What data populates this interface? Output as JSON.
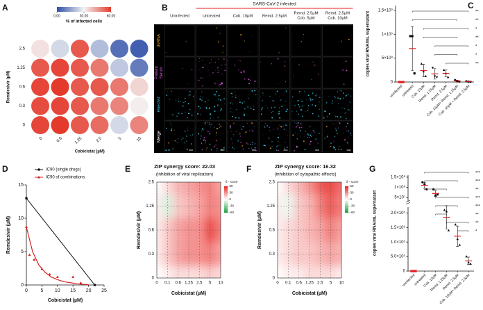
{
  "chart_data": [
    {
      "panel": "A",
      "type": "heatmap",
      "colorbar_label": "% of infected cells",
      "colorbar_ticks": [
        {
          "value": 0,
          "label": "0.00"
        },
        {
          "value": 30,
          "label": "30.00"
        },
        {
          "value": 60,
          "label": "60.00"
        }
      ],
      "colors": [
        "#2f4fa8",
        "#f4f4f4",
        "#e43a2c"
      ],
      "x_label": "Cobicistat (µM)",
      "y_label": "Remdesivir (µM)",
      "x": [
        "0",
        "0.6",
        "1.25",
        "2.5",
        "5",
        "10"
      ],
      "y": [
        "2.5",
        "1.25",
        "0.6",
        "0.3",
        "0"
      ],
      "values": [
        [
          33,
          25,
          55,
          20,
          6,
          3
        ],
        [
          55,
          58,
          55,
          50,
          22,
          8
        ],
        [
          58,
          60,
          55,
          55,
          50,
          35
        ],
        [
          57,
          58,
          55,
          50,
          48,
          31
        ],
        [
          58,
          60,
          55,
          52,
          25,
          48
        ]
      ]
    },
    {
      "panel": "C",
      "type": "dot",
      "y_label": "copies viral RNA/mL supernatant",
      "categories": [
        "uninfected",
        "untreated",
        "Cob. 10µM",
        "Remd. 1.25µM",
        "Remd. 2.5µM",
        "Cob. 10µM+ Remd. 1.25µM",
        "Cob. 10µM + Remd. 2.5µM"
      ],
      "points": [
        [
          0,
          0,
          0
        ],
        [
          960000000.0,
          960000000.0,
          180000000.0
        ],
        [
          380000000.0,
          220000000.0,
          120000000.0
        ],
        [
          300000000.0,
          120000000.0,
          100000000.0
        ],
        [
          250000000.0,
          180000000.0,
          100000000.0
        ],
        [
          40000000.0,
          20000000.0,
          10000000.0
        ],
        [
          15000000.0,
          10000000.0,
          5000000.0
        ]
      ],
      "values": [
        0,
        700000000.0,
        240000000.0,
        170000000.0,
        180000000.0,
        23000000.0,
        10000000.0
      ],
      "errors": [
        0,
        460000000.0,
        130000000.0,
        110000000.0,
        70000000.0,
        15000000.0,
        5000000.0
      ],
      "ylim": [
        0,
        1600000000.0
      ],
      "yticks": [
        0,
        {
          "value": 500000000.0,
          "label": "5×10⁸"
        },
        {
          "value": 1000000000.0,
          "label": "1×10⁹"
        },
        {
          "value": 1500000000.0,
          "label": "1.5×10⁹"
        }
      ],
      "markers": [
        "square",
        "square",
        "triangle",
        "triangle-down",
        "triangle",
        "circle",
        "circle"
      ],
      "point_colors": [
        "#e02020",
        "#111111",
        "#111111",
        "#111111",
        "#111111",
        "#111111",
        "#111111"
      ],
      "mean_color": "#e02020",
      "significance": [
        {
          "from": 1,
          "to": 6,
          "label": "**"
        },
        {
          "from": 1,
          "to": 5,
          "label": "**"
        },
        {
          "from": 2,
          "to": 6,
          "label": "*"
        },
        {
          "from": 2,
          "to": 5,
          "label": "**"
        },
        {
          "from": 3,
          "to": 6,
          "label": "*"
        },
        {
          "from": 3,
          "to": 5,
          "label": "*"
        },
        {
          "from": 4,
          "to": 6,
          "label": "**"
        }
      ]
    },
    {
      "panel": "D",
      "type": "line",
      "x_label": "Cobicistat (µM)",
      "y_label": "Remdesivir (µM)",
      "xlim": [
        0,
        25
      ],
      "ylim": [
        0,
        15
      ],
      "xticks": [
        0,
        5,
        10,
        15,
        20,
        25
      ],
      "yticks": [
        0,
        5,
        10,
        15
      ],
      "legend": "upper right",
      "series": [
        {
          "name": "IC90 (single drugs)",
          "color": "#111111",
          "marker": "circle",
          "style": "line",
          "x": [
            0,
            22
          ],
          "values": [
            13,
            0
          ]
        },
        {
          "name": "IC90 of combinations",
          "color": "#d62020",
          "marker": "triangle",
          "style": "markers",
          "x": [
            0,
            1,
            2.5,
            5,
            7.5,
            10,
            15,
            17.5
          ],
          "values": [
            8.7,
            4.5,
            3.8,
            2.4,
            1.6,
            1.2,
            1.2,
            0.3
          ]
        }
      ],
      "fit": {
        "x": [
          0,
          2,
          4,
          6,
          8,
          10,
          12,
          14,
          16,
          18,
          20
        ],
        "y": [
          8.7,
          5.0,
          3.0,
          1.9,
          1.2,
          0.8,
          0.5,
          0.35,
          0.2,
          0.1,
          0.05
        ]
      }
    },
    {
      "panel": "E",
      "type": "contour",
      "title": "ZIP synergy score: 22.03",
      "subtitle": "(inhibition of viral replication)",
      "x_label": "Cobicistat (µM)",
      "y_label": "Remdesivir (µM)",
      "x": [
        "0",
        "0.1",
        "0.6",
        "1.25",
        "2.5",
        "5",
        "10"
      ],
      "y": [
        "0",
        "0.3",
        "0.6",
        "1.25",
        "2.5"
      ],
      "values": [
        [
          0,
          5,
          10,
          10,
          10,
          15,
          10
        ],
        [
          5,
          15,
          25,
          30,
          30,
          35,
          25
        ],
        [
          5,
          15,
          25,
          30,
          30,
          50,
          35
        ],
        [
          5,
          -10,
          15,
          20,
          25,
          35,
          30
        ],
        [
          0,
          10,
          20,
          25,
          30,
          35,
          25
        ]
      ],
      "colors": [
        "#1a9e3a",
        "#ffffff",
        "#e8231f"
      ],
      "colorbar_label": "δ - score",
      "colorbar_ticks": [
        60,
        30,
        0,
        -30,
        -60
      ],
      "grid": true
    },
    {
      "panel": "F",
      "type": "contour",
      "title": "ZIP synergy score: 16.32",
      "subtitle": "(inhibition of cytopathic effects)",
      "x_label": "Cobicistat (µM)",
      "y_label": "Remdesivir (µM)",
      "x": [
        "0",
        "0.1",
        "0.6",
        "1.25",
        "2.5",
        "5",
        "10"
      ],
      "y": [
        "0",
        "0.3",
        "0.6",
        "1.25",
        "2.5"
      ],
      "values": [
        [
          0,
          5,
          5,
          10,
          10,
          10,
          5
        ],
        [
          5,
          10,
          15,
          15,
          20,
          25,
          20
        ],
        [
          5,
          10,
          15,
          20,
          25,
          35,
          25
        ],
        [
          5,
          -5,
          15,
          20,
          35,
          45,
          35
        ],
        [
          0,
          10,
          20,
          30,
          45,
          50,
          40
        ]
      ],
      "colors": [
        "#1a9e3a",
        "#ffffff",
        "#e8231f"
      ],
      "colorbar_label": "δ - score",
      "colorbar_ticks": [
        60,
        30,
        0,
        -30,
        -60
      ],
      "grid": true
    },
    {
      "panel": "G",
      "type": "dot",
      "y_label": "copies viral RNA/mL supernatant",
      "categories": [
        "uninfected",
        "untreated",
        "Cob. 10µM",
        "Remd. 1.25µM",
        "Remd. 2.5µM",
        "Cob. 10µM+ Remd. 2.5µM"
      ],
      "points": [
        [
          0,
          0,
          0
        ],
        [
          125000000.0,
          115000000.0,
          90000000.0
        ],
        [
          90000000.0,
          60000000.0,
          65000000.0
        ],
        [
          2100000.0,
          2050000.0,
          1400000.0
        ],
        [
          1600000.0,
          1100000.0,
          900000.0
        ],
        [
          500000.0,
          300000.0,
          250000.0
        ]
      ],
      "values": [
        0,
        110000000.0,
        70000000.0,
        1850000.0,
        1200000.0,
        350000.0
      ],
      "errors": [
        0,
        15000000.0,
        15000000.0,
        400000.0,
        350000.0,
        130000.0
      ],
      "segments": [
        {
          "ylim": [
            30000000.0,
            160000000.0
          ],
          "yticks": [
            {
              "value": 50000000.0,
              "label": "5×10⁷"
            },
            {
              "value": 100000000.0,
              "label": "1×10⁸"
            },
            {
              "value": 150000000.0,
              "label": "1.5×10⁸"
            }
          ]
        },
        {
          "ylim": [
            0,
            2200000.0
          ],
          "yticks": [
            0,
            {
              "value": 500000.0,
              "label": "5.0×10⁵"
            },
            {
              "value": 1000000.0,
              "label": "1.0×10⁶"
            },
            {
              "value": 1500000.0,
              "label": "1.5×10⁶"
            },
            {
              "value": 2000000.0,
              "label": "2.0×10⁶"
            }
          ]
        }
      ],
      "markers": [
        "square",
        "circle",
        "circle",
        "triangle",
        "triangle",
        "triangle"
      ],
      "point_colors": [
        "#e02020",
        "#111111",
        "#111111",
        "#111111",
        "#111111",
        "#111111"
      ],
      "mean_color": "#e02020",
      "significance": [
        {
          "from": 1,
          "to": 5,
          "label": "***"
        },
        {
          "from": 1,
          "to": 4,
          "label": "***"
        },
        {
          "from": 1,
          "to": 3,
          "label": "**"
        },
        {
          "from": 2,
          "to": 5,
          "label": "***"
        },
        {
          "from": 2,
          "to": 4,
          "label": "***"
        },
        {
          "from": 2,
          "to": 3,
          "label": "**"
        },
        {
          "from": 3,
          "to": 5,
          "label": "**"
        },
        {
          "from": 4,
          "to": 5,
          "label": "*"
        }
      ]
    }
  ],
  "microscopy": {
    "panel": "B",
    "header": "SARS-CoV-2 infected",
    "columns": [
      [
        "Uninfected"
      ],
      [
        "Untreated"
      ],
      [
        "Cob. 10µM"
      ],
      [
        "Remd. 2.5µM"
      ],
      [
        "Remd. 2.5µM",
        "Cob. 5µM"
      ],
      [
        "Remd. 2.5µM",
        "Cob. 10µM"
      ]
    ],
    "rows": [
      {
        "label": [
          "dsRNA"
        ],
        "color": "#e8a317"
      },
      {
        "label": [
          "Patient",
          "Serum"
        ],
        "color": "#d455d4"
      },
      {
        "label": [
          "Hoechst"
        ],
        "color": "#3cc0d8"
      },
      {
        "label": [
          "Merge"
        ],
        "color": "#ffffff"
      }
    ]
  }
}
